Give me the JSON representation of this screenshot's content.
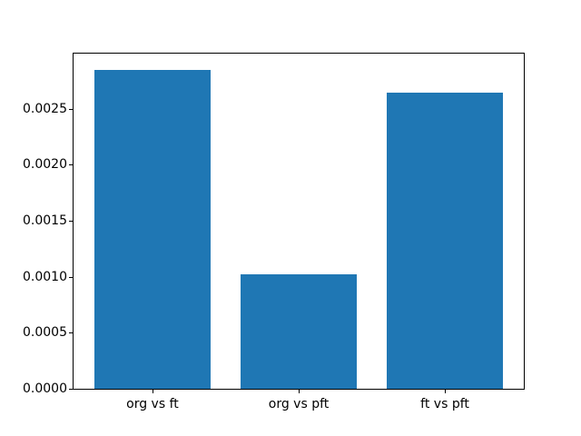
{
  "chart_data": {
    "type": "bar",
    "categories": [
      "org vs ft",
      "org vs pft",
      "ft vs pft"
    ],
    "values": [
      0.00285,
      0.00102,
      0.00264
    ],
    "title": "",
    "xlabel": "",
    "ylabel": "",
    "ylim": [
      0,
      0.0029925
    ],
    "xlim": [
      -0.54,
      2.54
    ],
    "bar_width": 0.8,
    "yticks": [
      0.0,
      0.0005,
      0.001,
      0.0015,
      0.002,
      0.0025
    ],
    "ytick_labels": [
      "0.0000",
      "0.0005",
      "0.0010",
      "0.0015",
      "0.0020",
      "0.0025"
    ],
    "bar_color": "#1f77b4",
    "frame_color": "#000000",
    "background_color": "#ffffff",
    "grid": false,
    "legend": null
  }
}
